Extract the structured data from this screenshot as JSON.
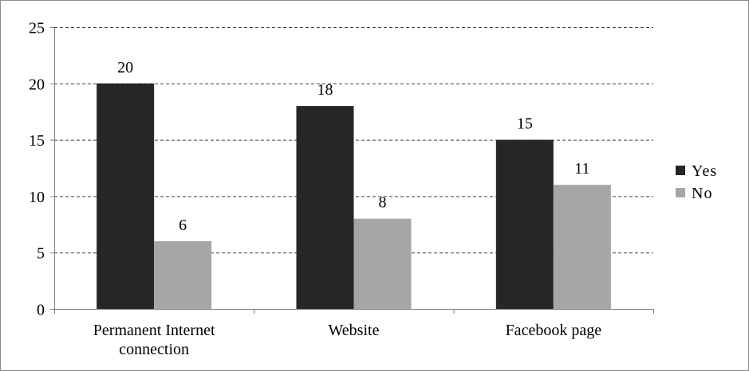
{
  "chart_data": {
    "type": "bar",
    "categories": [
      [
        "Permanent Internet",
        "connection"
      ],
      [
        "Website"
      ],
      [
        "Facebook page"
      ]
    ],
    "series": [
      {
        "name": "Yes",
        "values": [
          20,
          18,
          15
        ],
        "color": "#262626"
      },
      {
        "name": "No",
        "values": [
          6,
          8,
          11
        ],
        "color": "#a6a6a6"
      }
    ],
    "ylim": [
      0,
      25
    ],
    "yticks": [
      0,
      5,
      10,
      15,
      20,
      25
    ],
    "grid": true,
    "grid_style": "dashed",
    "legend_position": "right",
    "title": "",
    "xlabel": "",
    "ylabel": ""
  }
}
